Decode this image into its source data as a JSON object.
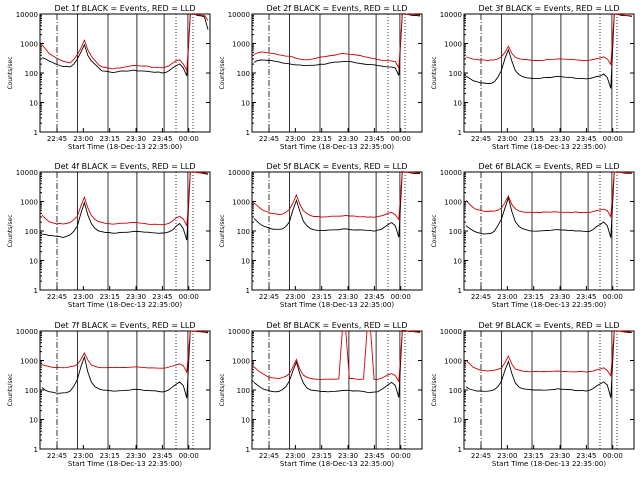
{
  "colors": {
    "events": "#000000",
    "lld": "#d00000",
    "axis": "#000000",
    "background": "#ffffff"
  },
  "chart_data": [
    {
      "type": "line",
      "title": "Det 1f BLACK = Events, RED = LLD",
      "xlabel": "Start Time (18-Dec-13 22:35:00)",
      "ylabel": "Counts/sec",
      "yscale": "log",
      "ylim": [
        1,
        10000
      ],
      "xticks": [
        "22:45",
        "23:00",
        "23:15",
        "23:30",
        "23:45",
        "00:00"
      ],
      "series": [
        {
          "name": "Events",
          "values": [
            330,
            300,
            260,
            230,
            200,
            180,
            170,
            165,
            160,
            200,
            300,
            500,
            900,
            400,
            260,
            200,
            150,
            120,
            115,
            110,
            105,
            110,
            112,
            115,
            118,
            120,
            122,
            120,
            118,
            116,
            112,
            110,
            108,
            105,
            100,
            105,
            120,
            150,
            180,
            200,
            150,
            80,
            10000,
            10000,
            9000,
            8500,
            8000,
            3000
          ]
        },
        {
          "name": "LLD",
          "values": [
            900,
            650,
            450,
            380,
            320,
            280,
            250,
            230,
            220,
            280,
            420,
            700,
            1300,
            600,
            380,
            260,
            190,
            160,
            150,
            145,
            140,
            145,
            150,
            160,
            165,
            170,
            175,
            180,
            175,
            170,
            165,
            160,
            155,
            150,
            150,
            160,
            180,
            220,
            260,
            280,
            200,
            120,
            10000,
            10000,
            9500,
            9000,
            8800,
            6000
          ]
        }
      ]
    },
    {
      "type": "line",
      "title": "Det 2f BLACK = Events, RED = LLD",
      "xlabel": "Start Time (18-Dec-13 22:35:00)",
      "ylabel": "Counts/sec",
      "yscale": "log",
      "ylim": [
        1,
        10000
      ],
      "xticks": [
        "22:45",
        "23:00",
        "23:15",
        "23:30",
        "23:45",
        "00:00"
      ],
      "series": [
        {
          "name": "Events",
          "values": [
            230,
            260,
            280,
            280,
            270,
            260,
            250,
            240,
            220,
            210,
            200,
            195,
            190,
            185,
            180,
            178,
            180,
            185,
            190,
            195,
            200,
            210,
            220,
            230,
            240,
            250,
            245,
            240,
            230,
            220,
            210,
            200,
            195,
            190,
            185,
            180,
            175,
            170,
            165,
            160,
            150,
            80,
            10000,
            10000,
            9500,
            9000,
            8800,
            8500
          ]
        },
        {
          "name": "LLD",
          "values": [
            420,
            480,
            500,
            500,
            480,
            460,
            440,
            420,
            400,
            380,
            360,
            340,
            320,
            300,
            290,
            285,
            290,
            300,
            320,
            340,
            360,
            380,
            400,
            420,
            440,
            460,
            450,
            440,
            420,
            400,
            380,
            360,
            340,
            320,
            300,
            290,
            280,
            270,
            260,
            250,
            240,
            150,
            10000,
            10000,
            9800,
            9500,
            9200,
            9000
          ]
        }
      ]
    },
    {
      "type": "line",
      "title": "Det 3f BLACK = Events, RED = LLD",
      "xlabel": "Start Time (18-Dec-13 22:35:00)",
      "ylabel": "Counts/sec",
      "yscale": "log",
      "ylim": [
        1,
        10000
      ],
      "xticks": [
        "22:45",
        "23:00",
        "23:15",
        "23:30",
        "23:45",
        "00:00"
      ],
      "series": [
        {
          "name": "Events",
          "values": [
            80,
            65,
            55,
            50,
            48,
            45,
            44,
            45,
            50,
            70,
            120,
            300,
            600,
            250,
            120,
            90,
            75,
            70,
            68,
            66,
            65,
            66,
            68,
            70,
            72,
            74,
            75,
            74,
            73,
            72,
            70,
            68,
            66,
            65,
            64,
            65,
            70,
            75,
            80,
            90,
            70,
            30,
            10000,
            10000,
            9000,
            8800,
            8500,
            8000
          ]
        },
        {
          "name": "LLD",
          "values": [
            350,
            320,
            300,
            290,
            280,
            275,
            270,
            270,
            280,
            300,
            350,
            500,
            800,
            450,
            330,
            300,
            290,
            280,
            275,
            270,
            268,
            270,
            275,
            280,
            285,
            290,
            295,
            292,
            288,
            285,
            280,
            275,
            270,
            268,
            265,
            270,
            280,
            300,
            320,
            350,
            300,
            200,
            10000,
            10000,
            9500,
            9200,
            9000,
            8800
          ]
        }
      ]
    },
    {
      "type": "line",
      "title": "Det 4f BLACK = Events, RED = LLD",
      "xlabel": "Start Time (18-Dec-13 22:35:00)",
      "ylabel": "Counts/sec",
      "yscale": "log",
      "ylim": [
        1,
        10000
      ],
      "xticks": [
        "22:45",
        "23:00",
        "23:15",
        "23:30",
        "23:45",
        "00:00"
      ],
      "series": [
        {
          "name": "Events",
          "values": [
            80,
            75,
            70,
            68,
            65,
            63,
            62,
            65,
            75,
            100,
            150,
            400,
            900,
            350,
            180,
            120,
            100,
            95,
            90,
            88,
            85,
            86,
            88,
            90,
            92,
            95,
            98,
            96,
            94,
            92,
            90,
            88,
            86,
            85,
            84,
            86,
            95,
            110,
            150,
            180,
            120,
            50,
            10000,
            10000,
            9500,
            9200,
            9000,
            8500
          ]
        },
        {
          "name": "LLD",
          "values": [
            350,
            260,
            210,
            190,
            180,
            175,
            175,
            180,
            200,
            240,
            320,
            700,
            1400,
            600,
            330,
            250,
            210,
            190,
            180,
            175,
            170,
            172,
            176,
            180,
            185,
            190,
            195,
            190,
            185,
            180,
            175,
            170,
            165,
            160,
            160,
            165,
            180,
            220,
            280,
            320,
            250,
            150,
            10000,
            10000,
            9800,
            9600,
            9300,
            9000
          ]
        }
      ]
    },
    {
      "type": "line",
      "title": "Det 5f BLACK = Events, RED = LLD",
      "xlabel": "Start Time (18-Dec-13 22:35:00)",
      "ylabel": "Counts/sec",
      "yscale": "log",
      "ylim": [
        1,
        10000
      ],
      "xticks": [
        "22:45",
        "23:00",
        "23:15",
        "23:30",
        "23:45",
        "00:00"
      ],
      "series": [
        {
          "name": "Events",
          "values": [
            260,
            200,
            160,
            140,
            130,
            120,
            115,
            115,
            120,
            140,
            200,
            500,
            1100,
            450,
            220,
            150,
            120,
            110,
            108,
            106,
            104,
            105,
            108,
            110,
            112,
            115,
            116,
            114,
            112,
            110,
            108,
            106,
            104,
            102,
            100,
            104,
            115,
            140,
            170,
            200,
            150,
            60,
            10000,
            10000,
            9500,
            9300,
            9000,
            8800
          ]
        },
        {
          "name": "LLD",
          "values": [
            900,
            700,
            560,
            480,
            430,
            400,
            380,
            370,
            380,
            420,
            520,
            900,
            1700,
            800,
            480,
            380,
            340,
            320,
            310,
            305,
            300,
            305,
            310,
            315,
            320,
            325,
            330,
            325,
            320,
            315,
            310,
            305,
            300,
            298,
            296,
            300,
            320,
            360,
            400,
            420,
            350,
            250,
            10000,
            10000,
            9800,
            9600,
            9400,
            9200
          ]
        }
      ]
    },
    {
      "type": "line",
      "title": "Det 6f BLACK = Events, RED = LLD",
      "xlabel": "Start Time (18-Dec-13 22:35:00)",
      "ylabel": "Counts/sec",
      "yscale": "log",
      "ylim": [
        1,
        10000
      ],
      "xticks": [
        "22:45",
        "23:00",
        "23:15",
        "23:30",
        "23:45",
        "00:00"
      ],
      "series": [
        {
          "name": "Events",
          "values": [
            150,
            120,
            100,
            90,
            85,
            80,
            80,
            85,
            100,
            150,
            250,
            600,
            1300,
            450,
            200,
            140,
            120,
            110,
            105,
            100,
            98,
            100,
            102,
            105,
            108,
            110,
            112,
            110,
            108,
            106,
            104,
            102,
            100,
            98,
            96,
            100,
            115,
            140,
            170,
            200,
            150,
            60,
            10000,
            10000,
            9500,
            9200,
            9000,
            8800
          ]
        },
        {
          "name": "LLD",
          "values": [
            1100,
            800,
            620,
            540,
            500,
            480,
            470,
            470,
            480,
            520,
            600,
            900,
            1500,
            800,
            560,
            480,
            450,
            440,
            435,
            430,
            428,
            430,
            432,
            435,
            438,
            440,
            442,
            440,
            438,
            436,
            434,
            432,
            430,
            428,
            426,
            430,
            450,
            480,
            520,
            560,
            480,
            300,
            10000,
            10000,
            9800,
            9600,
            9400,
            9200
          ]
        }
      ]
    },
    {
      "type": "line",
      "title": "Det 7f BLACK = Events, RED = LLD",
      "xlabel": "Start Time (18-Dec-13 22:35:00)",
      "ylabel": "Counts/sec",
      "yscale": "log",
      "ylim": [
        1,
        10000
      ],
      "xticks": [
        "22:45",
        "23:00",
        "23:15",
        "23:30",
        "23:45",
        "00:00"
      ],
      "series": [
        {
          "name": "Events",
          "values": [
            120,
            100,
            90,
            85,
            80,
            78,
            78,
            80,
            95,
            130,
            220,
            600,
            1300,
            400,
            180,
            130,
            110,
            100,
            96,
            94,
            92,
            93,
            95,
            97,
            100,
            102,
            104,
            102,
            100,
            98,
            96,
            94,
            92,
            90,
            88,
            92,
            105,
            130,
            160,
            190,
            140,
            55,
            10000,
            10000,
            9500,
            9300,
            9000,
            8800
          ]
        },
        {
          "name": "LLD",
          "values": [
            700,
            650,
            620,
            600,
            590,
            580,
            575,
            580,
            600,
            650,
            750,
            1100,
            1800,
            1000,
            700,
            620,
            590,
            580,
            575,
            570,
            568,
            570,
            575,
            580,
            585,
            590,
            595,
            590,
            585,
            580,
            575,
            570,
            565,
            560,
            560,
            570,
            600,
            650,
            700,
            750,
            650,
            400,
            10000,
            10000,
            9800,
            9600,
            9400,
            9200
          ]
        }
      ]
    },
    {
      "type": "line",
      "title": "Det 8f BLACK = Events, RED = LLD",
      "xlabel": "Start Time (18-Dec-13 22:35:00)",
      "ylabel": "Counts/sec",
      "yscale": "log",
      "ylim": [
        1,
        10000
      ],
      "xticks": [
        "22:45",
        "23:00",
        "23:15",
        "23:30",
        "23:45",
        "00:00"
      ],
      "series": [
        {
          "name": "Events",
          "values": [
            180,
            150,
            120,
            105,
            95,
            90,
            88,
            90,
            100,
            130,
            200,
            450,
            900,
            350,
            170,
            120,
            100,
            95,
            92,
            90,
            88,
            89,
            90,
            92,
            94,
            96,
            98,
            96,
            94,
            92,
            90,
            88,
            86,
            85,
            84,
            88,
            100,
            125,
            155,
            180,
            140,
            55,
            10000,
            10000,
            9500,
            9300,
            9000,
            8800
          ]
        },
        {
          "name": "LLD",
          "values": [
            600,
            480,
            380,
            320,
            280,
            260,
            250,
            250,
            260,
            290,
            350,
            600,
            1100,
            500,
            320,
            270,
            250,
            240,
            235,
            230,
            228,
            230,
            232,
            235,
            238,
            10000,
            10000,
            240,
            238,
            236,
            234,
            232,
            10000,
            10000,
            226,
            230,
            250,
            290,
            330,
            360,
            300,
            200,
            10000,
            10000,
            9800,
            9600,
            9400,
            9200
          ]
        }
      ]
    },
    {
      "type": "line",
      "title": "Det 9f BLACK = Events, RED = LLD",
      "xlabel": "Start Time (18-Dec-13 22:35:00)",
      "ylabel": "Counts/sec",
      "yscale": "log",
      "ylim": [
        1,
        10000
      ],
      "xticks": [
        "22:45",
        "23:00",
        "23:15",
        "23:30",
        "23:45",
        "00:00"
      ],
      "series": [
        {
          "name": "Events",
          "values": [
            130,
            110,
            100,
            95,
            92,
            90,
            90,
            92,
            100,
            130,
            200,
            450,
            900,
            350,
            170,
            125,
            110,
            105,
            102,
            100,
            98,
            99,
            100,
            102,
            104,
            106,
            108,
            106,
            104,
            102,
            100,
            98,
            96,
            95,
            94,
            98,
            110,
            135,
            165,
            190,
            145,
            55,
            10000,
            10000,
            9500,
            9300,
            9000,
            8800
          ]
        },
        {
          "name": "LLD",
          "values": [
            1000,
            800,
            600,
            520,
            480,
            460,
            450,
            450,
            460,
            490,
            560,
            850,
            1400,
            750,
            520,
            460,
            440,
            430,
            425,
            420,
            418,
            420,
            422,
            425,
            428,
            430,
            432,
            430,
            428,
            426,
            424,
            422,
            420,
            418,
            416,
            420,
            440,
            470,
            510,
            550,
            470,
            300,
            10000,
            10000,
            9800,
            9600,
            9400,
            9200
          ]
        }
      ]
    }
  ]
}
